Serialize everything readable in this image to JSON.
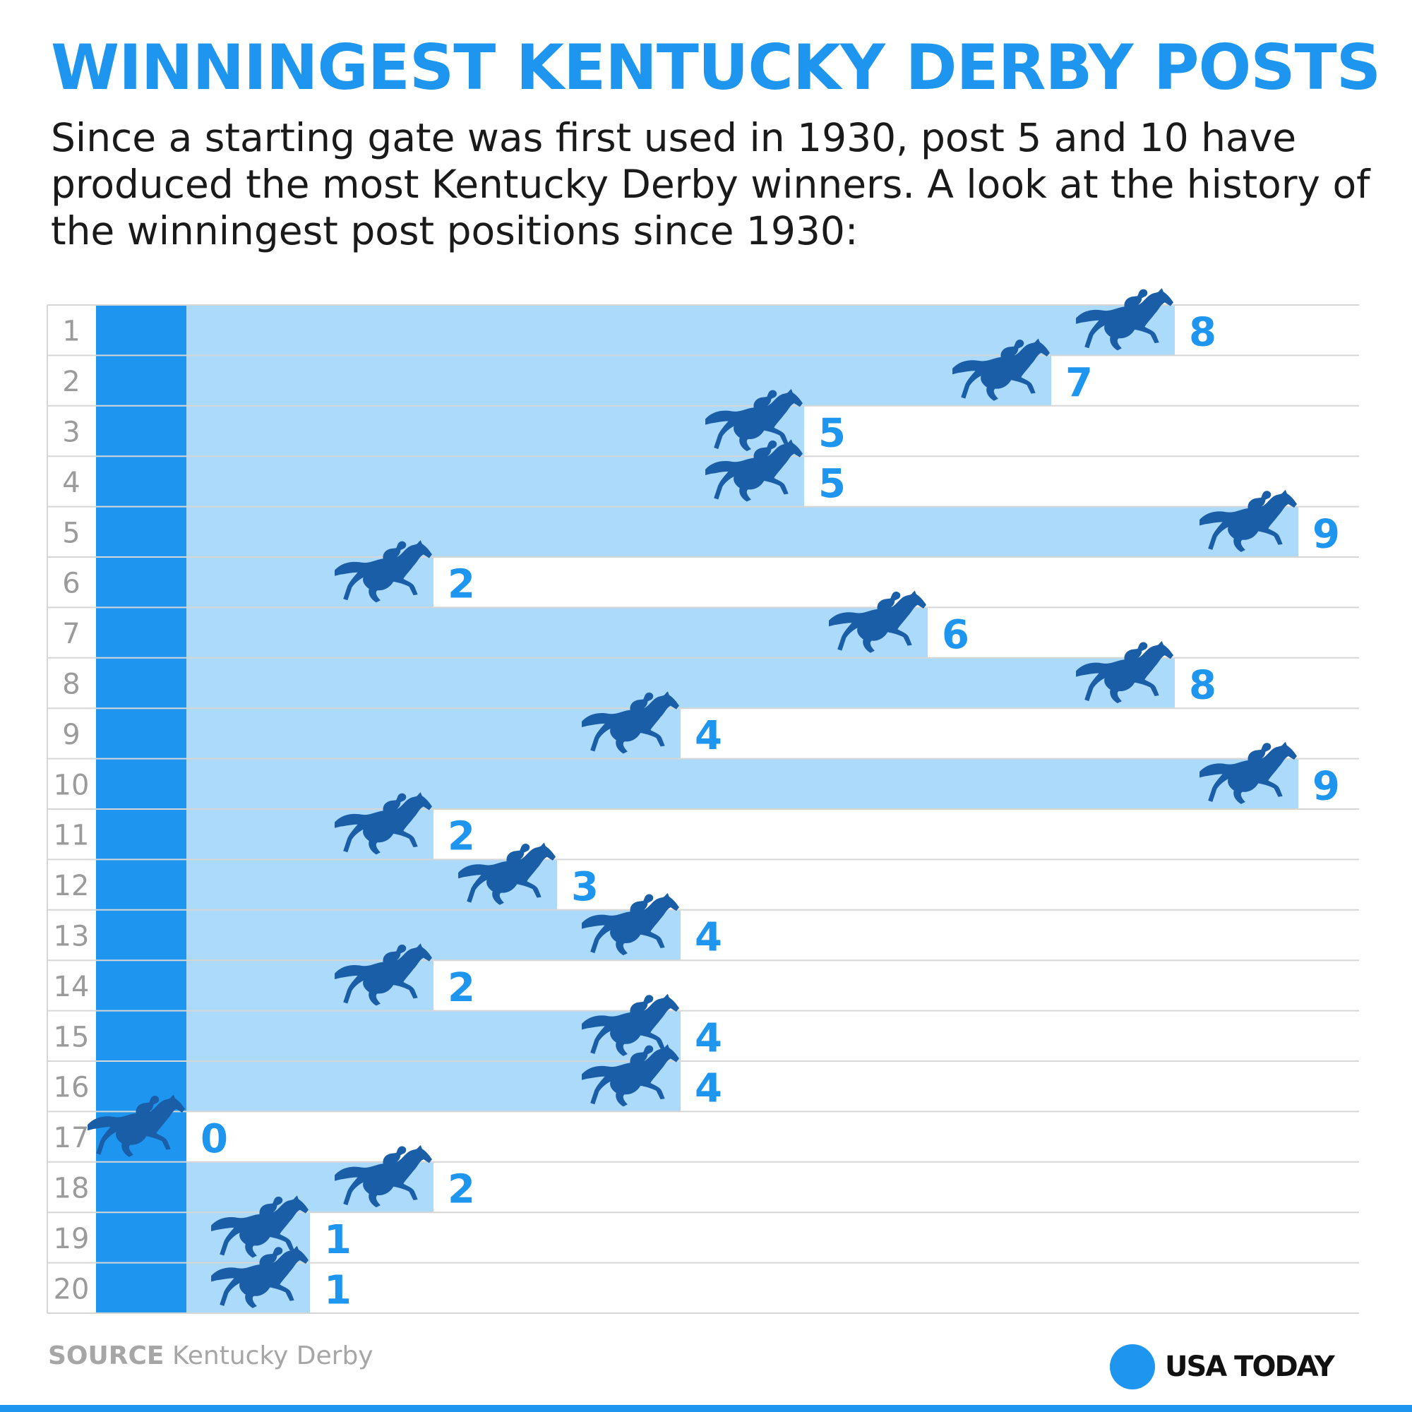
{
  "title": "WINNINGEST KENTUCKY DERBY POSTS",
  "subtitle": "Since a starting gate was first used in 1930, post 5 and 10 have produced the most Kentucky Derby winners. A look at the history of the winningest post positions since 1930:",
  "source": {
    "label": "SOURCE",
    "text": "Kentucky Derby"
  },
  "logo": {
    "text": "USA TODAY",
    "icon": "usa-today-dot-icon"
  },
  "colors": {
    "title": "#1e96ef",
    "gate": "#1e96ef",
    "bar": "#acdafb",
    "horse": "#1b5ea8",
    "value_label": "#1e96ef",
    "post_label": "#9b9b9b",
    "gridline": "#d6d6d6"
  },
  "chart_data": {
    "type": "bar",
    "orientation": "horizontal",
    "categories": [
      "1",
      "2",
      "3",
      "4",
      "5",
      "6",
      "7",
      "8",
      "9",
      "10",
      "11",
      "12",
      "13",
      "14",
      "15",
      "16",
      "17",
      "18",
      "19",
      "20"
    ],
    "values": [
      8,
      7,
      5,
      5,
      9,
      2,
      6,
      8,
      4,
      9,
      2,
      3,
      4,
      2,
      4,
      4,
      0,
      2,
      1,
      1
    ],
    "title": "WINNINGEST KENTUCKY DERBY POSTS",
    "xlabel": "",
    "ylabel": "",
    "xlim": [
      0,
      9
    ],
    "marker_icon": "racehorse-icon",
    "grid": true
  }
}
